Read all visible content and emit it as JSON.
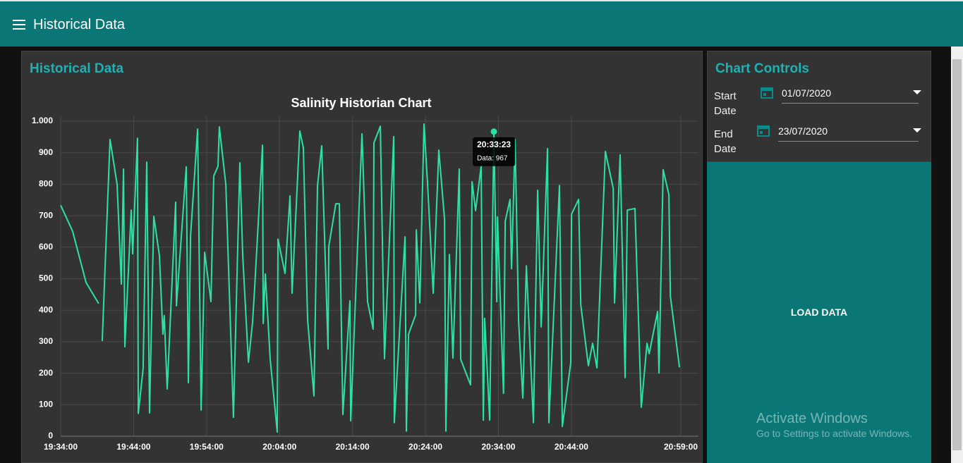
{
  "header": {
    "title": "Historical Data"
  },
  "panel": {
    "title": "Historical Data"
  },
  "chart_data": {
    "type": "line",
    "title": "Salinity Historian Chart",
    "color": "#2de0a7",
    "grid": true,
    "x": [
      "19:34:00",
      "19:35:38",
      "19:37:29",
      "19:39:13",
      "19:39:30",
      "19:39:42",
      "19:40:46",
      "19:41:44",
      "19:42:19",
      "19:42:37",
      "19:42:48",
      "19:43:40",
      "19:43:52",
      "19:44:32",
      "19:44:38",
      "19:45:18",
      "19:45:48",
      "19:46:11",
      "19:46:46",
      "19:47:32",
      "19:48:01",
      "19:48:12",
      "19:48:36",
      "19:49:46",
      "19:49:52",
      "19:51:13",
      "19:51:30",
      "19:51:48",
      "19:52:46",
      "19:53:15",
      "19:53:44",
      "19:54:36",
      "19:54:59",
      "19:55:34",
      "19:55:45",
      "19:56:38",
      "19:57:41",
      "19:58:34",
      "19:58:57",
      "19:59:44",
      "20:00:18",
      "20:00:35",
      "20:01:40",
      "20:01:46",
      "20:02:03",
      "20:02:43",
      "20:03:41",
      "20:03:47",
      "20:04:45",
      "20:05:26",
      "20:05:43",
      "20:06:47",
      "20:07:16",
      "20:07:51",
      "20:08:43",
      "20:09:12",
      "20:09:47",
      "20:10:39",
      "20:10:45",
      "20:11:43",
      "20:12:12",
      "20:12:41",
      "20:13:39",
      "20:13:45",
      "20:15:18",
      "20:16:04",
      "20:16:50",
      "20:16:56",
      "20:17:49",
      "20:18:23",
      "20:19:39",
      "20:19:44",
      "20:21:12",
      "20:21:23",
      "20:21:41",
      "20:22:39",
      "20:22:45",
      "20:23:14",
      "20:23:48",
      "20:24:17",
      "20:25:04",
      "20:25:50",
      "20:26:37",
      "20:26:48",
      "20:27:17",
      "20:27:46",
      "20:28:38",
      "20:28:50",
      "20:30:11",
      "20:30:23",
      "20:30:52",
      "20:31:38",
      "20:31:56",
      "20:32:07",
      "20:32:48",
      "20:33:23",
      "20:33:46",
      "20:33:52",
      "20:34:42",
      "20:34:56",
      "20:35:36",
      "20:35:48",
      "20:36:17",
      "20:36:46",
      "20:37:21",
      "20:37:50",
      "20:38:48",
      "20:39:23",
      "20:39:52",
      "20:40:44",
      "20:40:55",
      "20:42:22",
      "20:42:46",
      "20:43:55",
      "20:44:01",
      "20:44:59",
      "20:45:17",
      "20:46:20",
      "20:46:55",
      "20:47:30",
      "20:48:40",
      "20:49:44",
      "20:49:55",
      "20:50:41",
      "20:51:22",
      "20:51:40",
      "20:52:43",
      "20:53:35",
      "20:54:22",
      "20:54:40",
      "20:55:49",
      "20:56:01",
      "20:56:35",
      "20:57:22",
      "20:57:34",
      "20:58:49"
    ],
    "values": [
      733,
      651,
      488,
      421,
      null,
      302,
      942,
      799,
      483,
      848,
      284,
      718,
      579,
      946,
      72,
      215,
      870,
      74,
      698,
      573,
      324,
      383,
      150,
      743,
      414,
      855,
      170,
      635,
      975,
      83,
      584,
      427,
      826,
      857,
      982,
      799,
      60,
      868,
      577,
      235,
      362,
      468,
      924,
      358,
      515,
      244,
      13,
      626,
      517,
      763,
      454,
      969,
      915,
      371,
      128,
      794,
      922,
      277,
      602,
      738,
      738,
      69,
      430,
      49,
      960,
      427,
      340,
      931,
      984,
      246,
      951,
      43,
      633,
      16,
      324,
      385,
      655,
      423,
      991,
      803,
      454,
      908,
      689,
      16,
      577,
      248,
      848,
      244,
      163,
      808,
      716,
      857,
      51,
      374,
      51,
      967,
      427,
      696,
      136,
      682,
      752,
      532,
      942,
      365,
      121,
      541,
      43,
      781,
      347,
      913,
      43,
      796,
      31,
      233,
      705,
      752,
      418,
      224,
      295,
      217,
      904,
      787,
      423,
      893,
      186,
      718,
      723,
      92,
      295,
      262,
      396,
      201,
      846,
      767,
      445,
      219
    ],
    "xlim": [
      "19:34:00",
      "20:59:00"
    ],
    "xticks": [
      "19:34:00",
      "19:44:00",
      "19:54:00",
      "20:04:00",
      "20:14:00",
      "20:24:00",
      "20:34:00",
      "20:44:00",
      "20:59:00"
    ],
    "ylim": [
      0,
      1000
    ],
    "yticks": [
      0,
      100,
      200,
      300,
      400,
      500,
      600,
      700,
      800,
      900,
      {
        "value": 1000,
        "label": "1.000"
      }
    ],
    "tooltip": {
      "x": "20:33:23",
      "text": "Data: 967"
    }
  },
  "controls": {
    "title": "Chart Controls",
    "start_label": "Start Date",
    "start_value": "01/07/2020",
    "end_label": "End Date",
    "end_value": "23/07/2020",
    "button": "LOAD DATA"
  },
  "watermark": {
    "title": "Activate Windows",
    "text": "Go to Settings to activate Windows."
  }
}
